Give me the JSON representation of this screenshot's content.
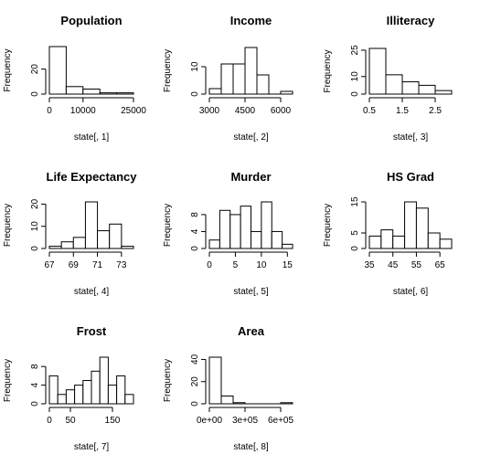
{
  "chart_data": [
    {
      "type": "bar",
      "title": "Population",
      "xlabel": "state[, 1]",
      "ylabel": "Frequency",
      "breaks": [
        0,
        5000,
        10000,
        15000,
        20000,
        25000
      ],
      "values": [
        38,
        6,
        4,
        1,
        1
      ],
      "xticks": [
        0,
        10000,
        25000
      ],
      "xtick_labels": [
        "0",
        "10000",
        "25000"
      ],
      "yticks": [
        0,
        20
      ],
      "ytick_labels": [
        "0",
        "20"
      ],
      "ylim": [
        0,
        38
      ]
    },
    {
      "type": "bar",
      "title": "Income",
      "xlabel": "state[, 2]",
      "ylabel": "Frequency",
      "breaks": [
        3000,
        3500,
        4000,
        4500,
        5000,
        5500,
        6000,
        6500
      ],
      "values": [
        2,
        11,
        11,
        17,
        7,
        0,
        1
      ],
      "xticks": [
        3000,
        4500,
        6000
      ],
      "xtick_labels": [
        "3000",
        "4500",
        "6000"
      ],
      "yticks": [
        0,
        10
      ],
      "ytick_labels": [
        "0",
        "10"
      ],
      "ylim": [
        0,
        17
      ]
    },
    {
      "type": "bar",
      "title": "Illiteracy",
      "xlabel": "state[, 3]",
      "ylabel": "Frequency",
      "breaks": [
        0.5,
        1.0,
        1.5,
        2.0,
        2.5,
        3.0
      ],
      "values": [
        26,
        11,
        7,
        5,
        2
      ],
      "xticks": [
        0.5,
        1.5,
        2.5
      ],
      "xtick_labels": [
        "0.5",
        "1.5",
        "2.5"
      ],
      "yticks": [
        0,
        10,
        25
      ],
      "ytick_labels": [
        "0",
        "10",
        "25"
      ],
      "ylim": [
        0,
        26
      ]
    },
    {
      "type": "bar",
      "title": "Life Expectancy",
      "xlabel": "state[, 4]",
      "ylabel": "Frequency",
      "breaks": [
        67,
        68,
        69,
        70,
        71,
        72,
        73,
        74
      ],
      "values": [
        1,
        3,
        5,
        21,
        8,
        11,
        1
      ],
      "xticks": [
        67,
        69,
        71,
        73
      ],
      "xtick_labels": [
        "67",
        "69",
        "71",
        "73"
      ],
      "yticks": [
        0,
        10,
        20
      ],
      "ytick_labels": [
        "0",
        "10",
        "20"
      ],
      "ylim": [
        0,
        21
      ]
    },
    {
      "type": "bar",
      "title": "Murder",
      "xlabel": "state[, 5]",
      "ylabel": "Frequency",
      "breaks": [
        0,
        2,
        4,
        6,
        8,
        10,
        12,
        14,
        16
      ],
      "values": [
        2,
        9,
        8,
        10,
        4,
        11,
        4,
        1
      ],
      "xticks": [
        0,
        5,
        10,
        15
      ],
      "xtick_labels": [
        "0",
        "5",
        "10",
        "15"
      ],
      "yticks": [
        0,
        4,
        8
      ],
      "ytick_labels": [
        "0",
        "4",
        "8"
      ],
      "ylim": [
        0,
        11
      ]
    },
    {
      "type": "bar",
      "title": "HS Grad",
      "xlabel": "state[, 6]",
      "ylabel": "Frequency",
      "breaks": [
        35,
        40,
        45,
        50,
        55,
        60,
        65,
        70
      ],
      "values": [
        4,
        6,
        4,
        15,
        13,
        5,
        3
      ],
      "xticks": [
        35,
        45,
        55,
        65
      ],
      "xtick_labels": [
        "35",
        "45",
        "55",
        "65"
      ],
      "yticks": [
        0,
        5,
        15
      ],
      "ytick_labels": [
        "0",
        "5",
        "15"
      ],
      "ylim": [
        0,
        15
      ]
    },
    {
      "type": "bar",
      "title": "Frost",
      "xlabel": "state[, 7]",
      "ylabel": "Frequency",
      "breaks": [
        0,
        20,
        40,
        60,
        80,
        100,
        120,
        140,
        160,
        180,
        200
      ],
      "values": [
        6,
        2,
        3,
        4,
        5,
        7,
        10,
        4,
        6,
        2
      ],
      "xticks": [
        0,
        50,
        150
      ],
      "xtick_labels": [
        "0",
        "50",
        "150"
      ],
      "yticks": [
        0,
        4,
        8
      ],
      "ytick_labels": [
        "0",
        "4",
        "8"
      ],
      "ylim": [
        0,
        10
      ]
    },
    {
      "type": "bar",
      "title": "Area",
      "xlabel": "state[, 8]",
      "ylabel": "Frequency",
      "breaks": [
        0,
        100000,
        200000,
        300000,
        400000,
        500000,
        600000,
        700000
      ],
      "values": [
        42,
        7,
        1,
        0,
        0,
        0,
        1
      ],
      "xticks": [
        0,
        300000,
        600000
      ],
      "xtick_labels": [
        "0e+00",
        "3e+05",
        "6e+05"
      ],
      "yticks": [
        0,
        20,
        40
      ],
      "ytick_labels": [
        "0",
        "20",
        "40"
      ],
      "ylim": [
        0,
        42
      ]
    }
  ]
}
